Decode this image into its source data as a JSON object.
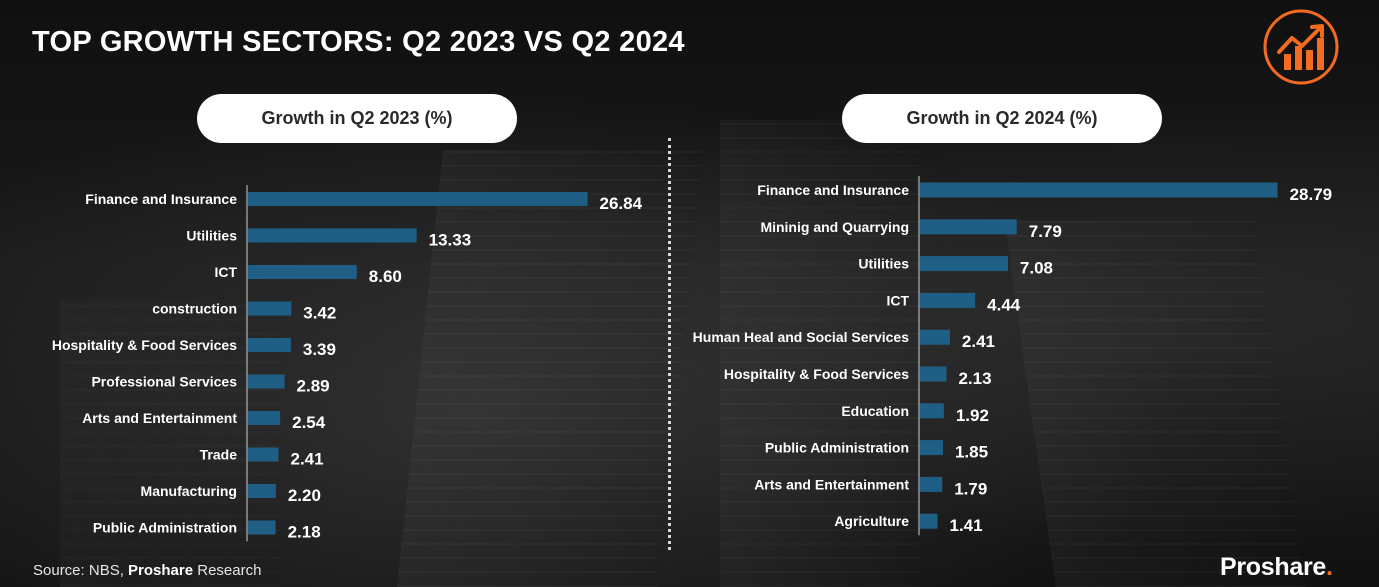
{
  "title": "TOP GROWTH SECTORS: Q2 2023 VS Q2 2024",
  "colors": {
    "bar": "#1f5f86",
    "accent": "#f26b21",
    "text": "#ffffff"
  },
  "logo_icon": "growth-chart-arrow-icon",
  "source": {
    "prefix": "Source: NBS, ",
    "brand": "Proshare",
    "suffix": " Research"
  },
  "brand": {
    "name": "Proshare",
    "dot": "."
  },
  "chart_data": [
    {
      "type": "bar",
      "orientation": "horizontal",
      "title": "Growth in Q2 2023 (%)",
      "categories": [
        "Finance and Insurance",
        "Utilities",
        "ICT",
        "construction",
        "Hospitality & Food Services",
        "Professional Services",
        "Arts and Entertainment",
        "Trade",
        "Manufacturing",
        "Public Administration"
      ],
      "values": [
        26.84,
        13.33,
        8.6,
        3.42,
        3.39,
        2.89,
        2.54,
        2.41,
        2.2,
        2.18
      ],
      "value_labels": [
        "26.84",
        "13.33",
        "8.60",
        "3.42",
        "3.39",
        "2.89",
        "2.54",
        "2.41",
        "2.20",
        "2.18"
      ],
      "xlabel": "",
      "ylabel": "",
      "grid": false
    },
    {
      "type": "bar",
      "orientation": "horizontal",
      "title": "Growth in Q2 2024 (%)",
      "categories": [
        "Finance and Insurance",
        "Mininig and Quarrying",
        "Utilities",
        "ICT",
        "Human Heal and Social Services",
        "Hospitality & Food Services",
        "Education",
        "Public Administration",
        "Arts and Entertainment",
        "Agriculture"
      ],
      "values": [
        28.79,
        7.79,
        7.08,
        4.44,
        2.41,
        2.13,
        1.92,
        1.85,
        1.79,
        1.41
      ],
      "value_labels": [
        "28.79",
        "7.79",
        "7.08",
        "4.44",
        "2.41",
        "2.13",
        "1.92",
        "1.85",
        "1.79",
        "1.41"
      ],
      "xlabel": "",
      "ylabel": "",
      "grid": false
    }
  ]
}
